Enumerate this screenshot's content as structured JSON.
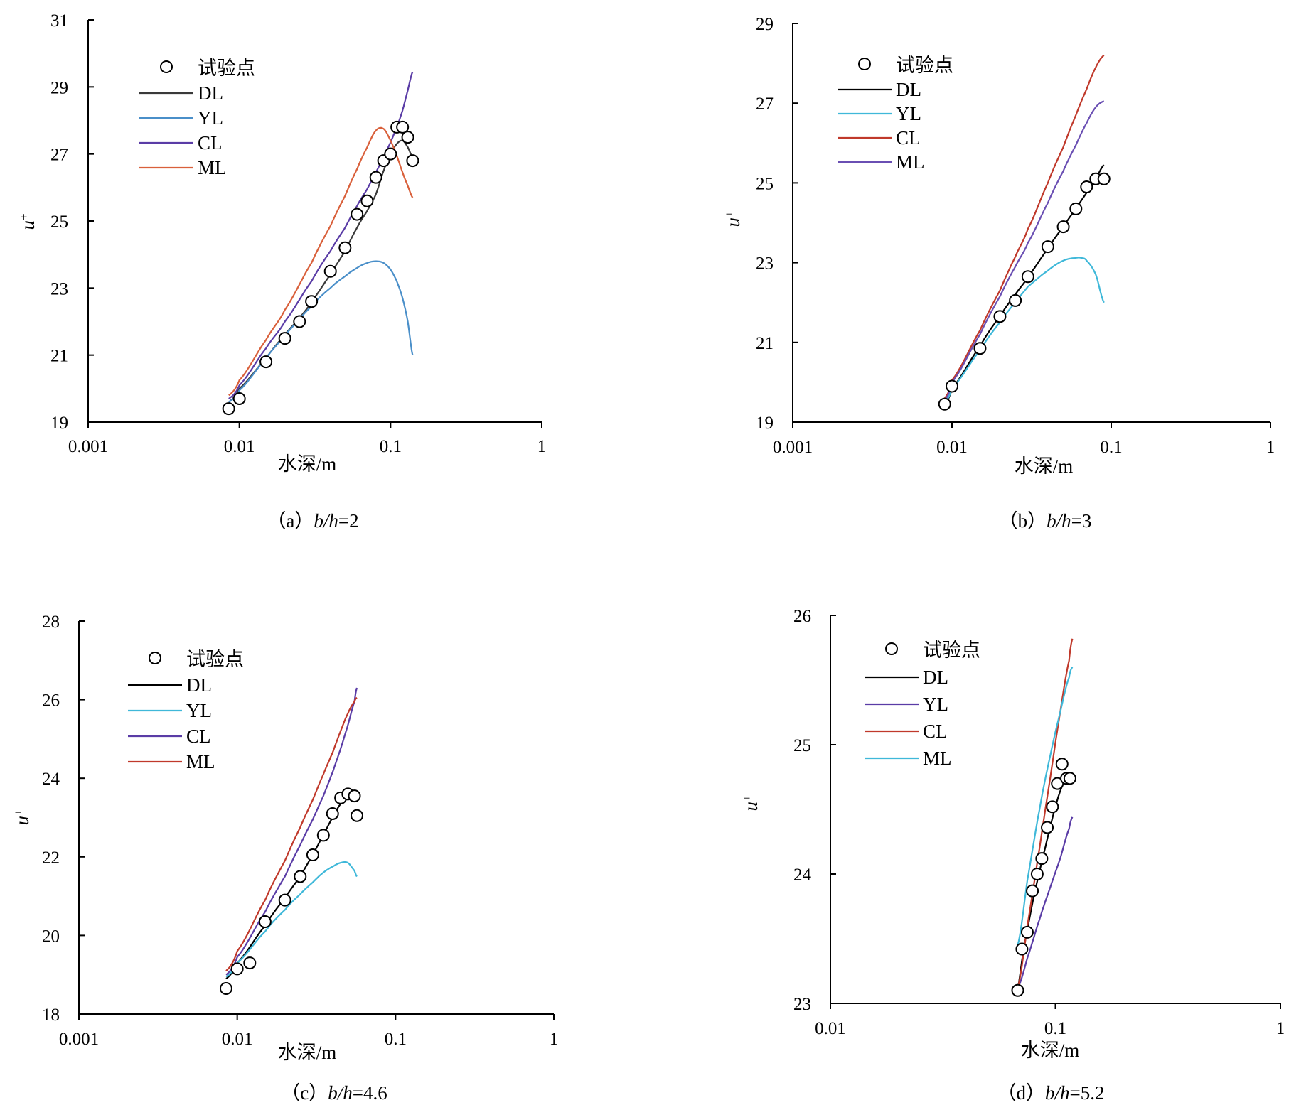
{
  "figure_captions": [
    {
      "prefix": "（a）",
      "var": "b/h",
      "eq": "=2"
    },
    {
      "prefix": "（b）",
      "var": "b/h",
      "eq": "=3"
    },
    {
      "prefix": "（c）",
      "var": "b/h",
      "eq": "=4.6"
    },
    {
      "prefix": "（d）",
      "var": "b/h",
      "eq": "=5.2"
    }
  ],
  "chart_data": [
    {
      "type": "line",
      "xscale": "log",
      "xlabel": "水深/m",
      "ylabel": "u+",
      "xlim": [
        0.001,
        1
      ],
      "ylim": [
        19,
        31
      ],
      "xticks": [
        "0.001",
        "0.01",
        "0.1",
        "1"
      ],
      "yticks": [
        "19",
        "21",
        "23",
        "25",
        "27",
        "29",
        "31"
      ],
      "legend_position": "top-left",
      "points_series": {
        "name": "试验点",
        "x": [
          0.0085,
          0.01,
          0.015,
          0.02,
          0.025,
          0.03,
          0.04,
          0.05,
          0.06,
          0.07,
          0.08,
          0.09,
          0.1,
          0.11,
          0.12,
          0.13,
          0.14
        ],
        "y": [
          19.4,
          19.7,
          20.8,
          21.5,
          22.0,
          22.6,
          23.5,
          24.2,
          25.2,
          25.6,
          26.3,
          26.8,
          27.0,
          27.8,
          27.8,
          27.5,
          26.8
        ]
      },
      "series": [
        {
          "name": "DL",
          "color": "#3a3a3a",
          "x": [
            0.0085,
            0.01,
            0.015,
            0.02,
            0.025,
            0.03,
            0.04,
            0.05,
            0.06,
            0.07,
            0.08,
            0.09,
            0.1,
            0.11,
            0.12,
            0.13,
            0.14
          ],
          "y": [
            19.6,
            20.0,
            20.9,
            21.6,
            22.1,
            22.6,
            23.4,
            24.1,
            24.8,
            25.3,
            25.8,
            26.5,
            27.0,
            27.3,
            27.4,
            27.2,
            26.9
          ]
        },
        {
          "name": "YL",
          "color": "#4a8fc9",
          "x": [
            0.0085,
            0.01,
            0.015,
            0.02,
            0.03,
            0.04,
            0.05,
            0.06,
            0.07,
            0.08,
            0.09,
            0.1,
            0.11,
            0.12,
            0.13,
            0.14
          ],
          "y": [
            19.6,
            19.95,
            20.9,
            21.6,
            22.45,
            23.0,
            23.35,
            23.6,
            23.75,
            23.8,
            23.75,
            23.55,
            23.2,
            22.7,
            22.0,
            21.0
          ]
        },
        {
          "name": "CL",
          "color": "#5a3ca6",
          "x": [
            0.0085,
            0.01,
            0.015,
            0.02,
            0.03,
            0.04,
            0.05,
            0.06,
            0.07,
            0.08,
            0.09,
            0.1,
            0.11,
            0.12,
            0.13,
            0.14
          ],
          "y": [
            19.7,
            20.1,
            21.2,
            22.0,
            23.2,
            24.1,
            24.8,
            25.45,
            25.95,
            26.45,
            26.9,
            27.35,
            27.8,
            28.3,
            28.9,
            29.45
          ]
        },
        {
          "name": "ML",
          "color": "#d9603b",
          "x": [
            0.0085,
            0.01,
            0.015,
            0.02,
            0.03,
            0.04,
            0.05,
            0.06,
            0.07,
            0.08,
            0.09,
            0.1,
            0.11,
            0.12,
            0.13,
            0.14
          ],
          "y": [
            19.8,
            20.25,
            21.45,
            22.35,
            23.75,
            24.85,
            25.75,
            26.55,
            27.2,
            27.7,
            27.75,
            27.4,
            26.95,
            26.45,
            26.05,
            25.7
          ]
        }
      ]
    },
    {
      "type": "line",
      "xscale": "log",
      "xlabel": "水深/m",
      "ylabel": "u+",
      "xlim": [
        0.001,
        1
      ],
      "ylim": [
        19,
        29
      ],
      "xticks": [
        "0.001",
        "0.01",
        "0.1",
        "1"
      ],
      "yticks": [
        "19",
        "21",
        "23",
        "25",
        "27",
        "29"
      ],
      "legend_position": "top-left",
      "points_series": {
        "name": "试验点",
        "x": [
          0.009,
          0.01,
          0.015,
          0.02,
          0.025,
          0.03,
          0.04,
          0.05,
          0.06,
          0.07,
          0.08,
          0.09
        ],
        "y": [
          19.45,
          19.9,
          20.85,
          21.65,
          22.05,
          22.65,
          23.4,
          23.9,
          24.35,
          24.9,
          25.1,
          25.1
        ]
      },
      "series": [
        {
          "name": "DL",
          "color": "#000000",
          "x": [
            0.009,
            0.01,
            0.015,
            0.02,
            0.025,
            0.03,
            0.04,
            0.05,
            0.06,
            0.07,
            0.08,
            0.09
          ],
          "y": [
            19.45,
            19.85,
            20.9,
            21.65,
            22.2,
            22.65,
            23.35,
            23.9,
            24.35,
            24.75,
            25.1,
            25.45
          ]
        },
        {
          "name": "YL",
          "color": "#3fb8d9",
          "x": [
            0.009,
            0.01,
            0.015,
            0.02,
            0.025,
            0.03,
            0.04,
            0.05,
            0.06,
            0.065,
            0.07,
            0.08,
            0.09
          ],
          "y": [
            19.5,
            19.85,
            20.8,
            21.5,
            22.0,
            22.4,
            22.8,
            23.05,
            23.12,
            23.12,
            23.05,
            22.7,
            22.0
          ]
        },
        {
          "name": "CL",
          "color": "#c0392b",
          "x": [
            0.009,
            0.01,
            0.015,
            0.02,
            0.025,
            0.03,
            0.04,
            0.05,
            0.06,
            0.07,
            0.08,
            0.09
          ],
          "y": [
            19.6,
            20.05,
            21.3,
            22.3,
            23.15,
            23.85,
            25.0,
            25.9,
            26.7,
            27.35,
            27.9,
            28.2
          ]
        },
        {
          "name": "ML",
          "color": "#6a4fb3",
          "x": [
            0.009,
            0.01,
            0.015,
            0.02,
            0.025,
            0.03,
            0.04,
            0.05,
            0.06,
            0.07,
            0.08,
            0.09
          ],
          "y": [
            19.55,
            20.0,
            21.2,
            22.15,
            22.9,
            23.5,
            24.5,
            25.3,
            25.95,
            26.5,
            26.9,
            27.05
          ]
        }
      ]
    },
    {
      "type": "line",
      "xscale": "log",
      "xlabel": "水深/m",
      "ylabel": "u+",
      "xlim": [
        0.001,
        1
      ],
      "ylim": [
        18,
        28
      ],
      "xticks": [
        "0.001",
        "0.01",
        "0.1",
        "1"
      ],
      "yticks": [
        "18",
        "20",
        "22",
        "24",
        "26",
        "28"
      ],
      "legend_position": "top-left",
      "points_series": {
        "name": "试验点",
        "x": [
          0.0085,
          0.01,
          0.012,
          0.015,
          0.02,
          0.025,
          0.03,
          0.035,
          0.04,
          0.045,
          0.05,
          0.055,
          0.057
        ],
        "y": [
          18.65,
          19.15,
          19.3,
          20.35,
          20.9,
          21.5,
          22.05,
          22.55,
          23.1,
          23.5,
          23.6,
          23.55,
          23.05
        ]
      },
      "series": [
        {
          "name": "DL",
          "color": "#000000",
          "x": [
            0.0085,
            0.01,
            0.015,
            0.02,
            0.025,
            0.03,
            0.035,
            0.04,
            0.045,
            0.05,
            0.055
          ],
          "y": [
            18.9,
            19.3,
            20.25,
            20.95,
            21.5,
            22.05,
            22.55,
            23.0,
            23.35,
            23.55,
            23.45
          ]
        },
        {
          "name": "YL",
          "color": "#3fb8d9",
          "x": [
            0.0085,
            0.01,
            0.015,
            0.02,
            0.025,
            0.03,
            0.035,
            0.04,
            0.045,
            0.05,
            0.055,
            0.057
          ],
          "y": [
            18.95,
            19.3,
            20.1,
            20.65,
            21.05,
            21.35,
            21.6,
            21.75,
            21.85,
            21.85,
            21.65,
            21.5
          ]
        },
        {
          "name": "CL",
          "color": "#5a3ca6",
          "x": [
            0.0085,
            0.01,
            0.015,
            0.02,
            0.025,
            0.03,
            0.035,
            0.04,
            0.045,
            0.05,
            0.055,
            0.057
          ],
          "y": [
            19.0,
            19.45,
            20.6,
            21.5,
            22.3,
            22.95,
            23.55,
            24.15,
            24.75,
            25.35,
            25.95,
            26.3
          ]
        },
        {
          "name": "ML",
          "color": "#c0392b",
          "x": [
            0.0085,
            0.01,
            0.015,
            0.02,
            0.025,
            0.03,
            0.035,
            0.04,
            0.045,
            0.05,
            0.055,
            0.057
          ],
          "y": [
            19.1,
            19.6,
            20.9,
            21.9,
            22.75,
            23.45,
            24.1,
            24.65,
            25.2,
            25.65,
            25.95,
            26.05
          ]
        }
      ]
    },
    {
      "type": "line",
      "xscale": "log",
      "xlabel": "水深/m",
      "ylabel": "u+",
      "xlim": [
        0.01,
        1
      ],
      "ylim": [
        23,
        26
      ],
      "xticks": [
        "0.01",
        "0.1",
        "1"
      ],
      "yticks": [
        "23",
        "24",
        "25",
        "26"
      ],
      "legend_position": "top-left",
      "points_series": {
        "name": "试验点",
        "x": [
          0.068,
          0.071,
          0.075,
          0.079,
          0.083,
          0.087,
          0.092,
          0.097,
          0.102,
          0.107,
          0.112,
          0.116
        ],
        "y": [
          23.1,
          23.42,
          23.55,
          23.87,
          24.0,
          24.12,
          24.36,
          24.52,
          24.7,
          24.85,
          24.74,
          24.74
        ]
      },
      "series": [
        {
          "name": "DL",
          "color": "#000000",
          "x": [
            0.068,
            0.072,
            0.076,
            0.08,
            0.085,
            0.09,
            0.095,
            0.1,
            0.105,
            0.11,
            0.115,
            0.118
          ],
          "y": [
            23.12,
            23.4,
            23.62,
            23.82,
            24.02,
            24.2,
            24.37,
            24.52,
            24.64,
            24.72,
            24.76,
            24.74
          ]
        },
        {
          "name": "YL",
          "color": "#5a3ca6",
          "x": [
            0.068,
            0.075,
            0.085,
            0.095,
            0.105,
            0.115,
            0.119
          ],
          "y": [
            23.12,
            23.35,
            23.65,
            23.9,
            24.12,
            24.35,
            24.44
          ]
        },
        {
          "name": "CL",
          "color": "#c0392b",
          "x": [
            0.068,
            0.075,
            0.085,
            0.095,
            0.105,
            0.115,
            0.119
          ],
          "y": [
            23.12,
            23.6,
            24.2,
            24.75,
            25.25,
            25.65,
            25.82
          ]
        },
        {
          "name": "ML",
          "color": "#3fb8d9",
          "x": [
            0.068,
            0.075,
            0.085,
            0.095,
            0.105,
            0.115,
            0.119
          ],
          "y": [
            23.45,
            23.95,
            24.5,
            24.92,
            25.25,
            25.52,
            25.6
          ]
        }
      ]
    }
  ]
}
